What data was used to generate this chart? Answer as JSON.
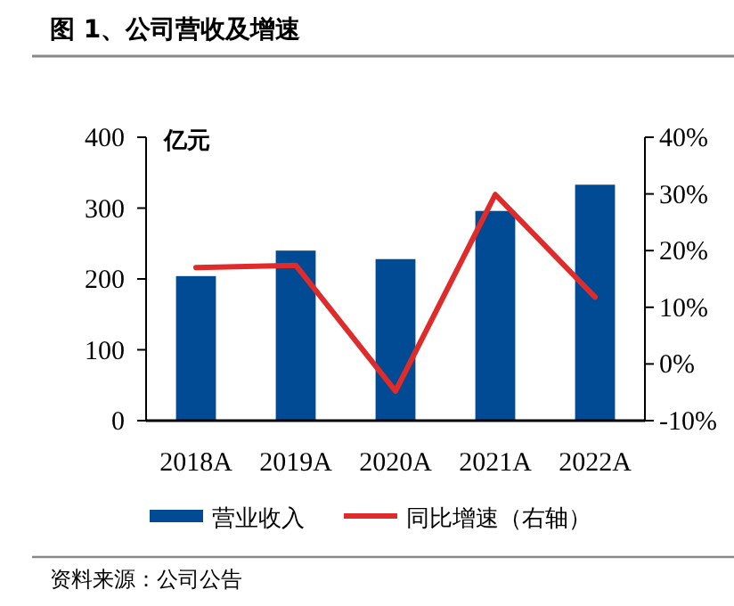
{
  "chart_data": {
    "type": "bar",
    "title": "图 1、公司营收及增速",
    "ylabel": "亿元",
    "categories": [
      "2018A",
      "2019A",
      "2020A",
      "2021A",
      "2022A"
    ],
    "series": [
      {
        "name": "营业收入",
        "color": "#004b93",
        "values": [
          204,
          240,
          228,
          296,
          333
        ]
      },
      {
        "name": "同比增速（右轴）",
        "type": "line",
        "axis": "y2",
        "color": "#e02b2b",
        "values": [
          17,
          17.4,
          -4.8,
          29.9,
          11.8
        ]
      }
    ],
    "ylim": [
      0,
      400
    ],
    "yticks": [
      0,
      100,
      200,
      300,
      400
    ],
    "y2lim": [
      -10,
      40
    ],
    "y2ticks": [
      {
        "value": -10,
        "label": "-10%"
      },
      {
        "value": 0,
        "label": "0%"
      },
      {
        "value": 10,
        "label": "10%"
      },
      {
        "value": 20,
        "label": "20%"
      },
      {
        "value": 30,
        "label": "30%"
      },
      {
        "value": 40,
        "label": "40%"
      }
    ],
    "grid": false,
    "legend": "bottom",
    "marker": "none",
    "annotations": [
      "资料来源：公司公告"
    ]
  }
}
